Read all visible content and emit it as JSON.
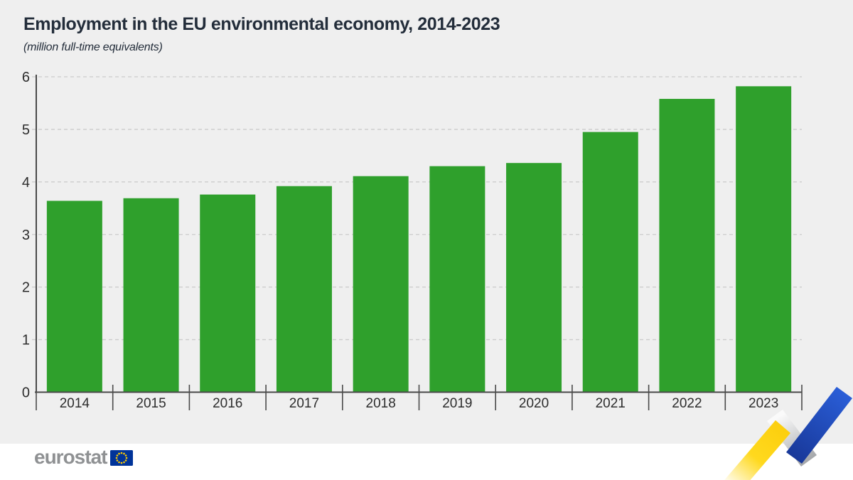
{
  "header": {
    "title": "Employment in the EU environmental economy, 2014-2023",
    "subtitle": "(million full-time equivalents)"
  },
  "chart_data": {
    "type": "bar",
    "title": "Employment in the EU environmental economy, 2014-2023",
    "unit_label": "(million full-time equivalents)",
    "categories": [
      "2014",
      "2015",
      "2016",
      "2017",
      "2018",
      "2019",
      "2020",
      "2021",
      "2022",
      "2023"
    ],
    "values": [
      3.64,
      3.69,
      3.76,
      3.92,
      4.11,
      4.3,
      4.36,
      4.95,
      5.58,
      5.82
    ],
    "ylim": [
      0,
      6
    ],
    "yticks": [
      0,
      1,
      2,
      3,
      4,
      5,
      6
    ],
    "xlabel": "",
    "ylabel": "",
    "grid": "horizontal-dashed",
    "legend": "none",
    "bar_color": "#2fa02c"
  },
  "footer": {
    "logo_text": "eurostat"
  },
  "colors": {
    "background": "#efefef",
    "footer_background": "#ffffff",
    "bar_green": "#2fa02c",
    "title_text": "#232d3a",
    "axis_text": "#2d2d2d",
    "axis_line": "#4a4a4a",
    "gridline": "#cccccc",
    "logo_gray": "#8f9193",
    "eu_flag_blue": "#003399",
    "eu_star_yellow": "#ffcc00",
    "zigzag_yellow": "#fccf0e",
    "zigzag_yellow_fade": "#ffffff",
    "zigzag_gray_light": "#fafafa",
    "zigzag_gray_dark": "#a5a7aa",
    "zigzag_blue_dark": "#183797",
    "zigzag_blue_light": "#2a5ed8"
  }
}
